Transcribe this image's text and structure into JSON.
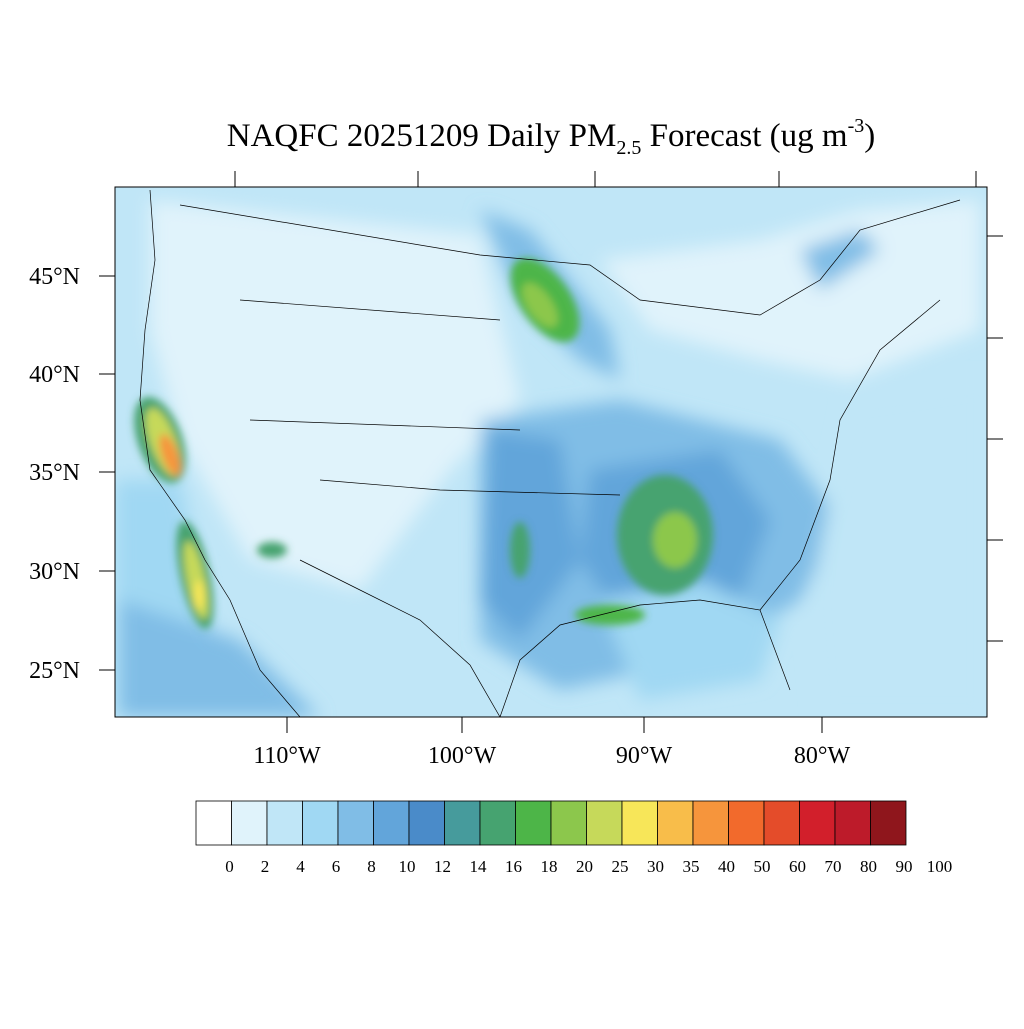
{
  "map": {
    "title": {
      "main": "NAQFC 20251209 Daily PM",
      "subscript": "2.5",
      "middle": " Forecast (ug m",
      "superscript": "-3",
      "end": ")"
    },
    "lat_labels": [
      "45°N",
      "40°N",
      "35°N",
      "30°N",
      "25°N"
    ],
    "lon_labels": [
      "110°W",
      "100°W",
      "90°W",
      "80°W"
    ],
    "colorbar": {
      "levels": [
        0,
        2,
        4,
        6,
        8,
        10,
        12,
        14,
        16,
        18,
        20,
        25,
        30,
        35,
        40,
        50,
        60,
        70,
        80,
        90,
        100
      ],
      "colors": [
        "#ffffff",
        "#e0f3fb",
        "#c0e6f7",
        "#a0d8f3",
        "#80bde6",
        "#62a5da",
        "#4a8bc9",
        "#469b9c",
        "#46a370",
        "#4db548",
        "#8cc74c",
        "#c6d95a",
        "#f7e659",
        "#f8bd4a",
        "#f6953c",
        "#f26a2c",
        "#e44c2a",
        "#d21f2b",
        "#bd1b2a",
        "#8f161c"
      ]
    }
  }
}
